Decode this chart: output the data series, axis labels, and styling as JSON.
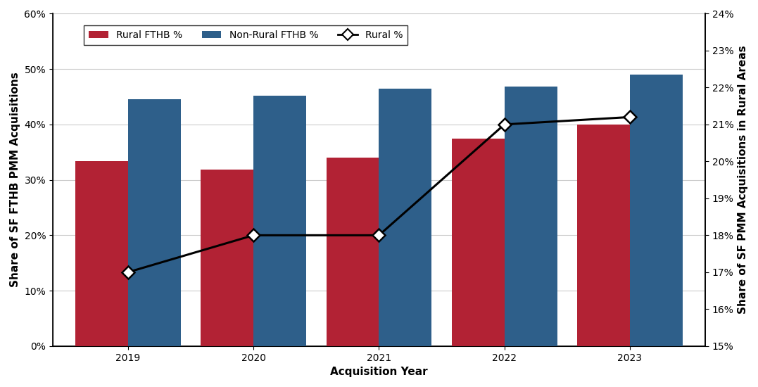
{
  "years": [
    2019,
    2020,
    2021,
    2022,
    2023
  ],
  "rural_fthb": [
    0.334,
    0.319,
    0.34,
    0.375,
    0.4
  ],
  "nonrural_fthb": [
    0.445,
    0.452,
    0.464,
    0.469,
    0.49
  ],
  "rural_pct": [
    0.17,
    0.18,
    0.18,
    0.21,
    0.212
  ],
  "bar_width": 0.42,
  "rural_color": "#b22234",
  "nonrural_color": "#2e5f8a",
  "line_color": "#000000",
  "left_ylim": [
    0.0,
    0.6
  ],
  "right_ylim": [
    0.15,
    0.24
  ],
  "left_yticks": [
    0.0,
    0.1,
    0.2,
    0.3,
    0.4,
    0.5,
    0.6
  ],
  "right_yticks": [
    0.15,
    0.16,
    0.17,
    0.18,
    0.19,
    0.2,
    0.21,
    0.22,
    0.23,
    0.24
  ],
  "xlabel": "Acquisition Year",
  "ylabel_left": "Share of SF FTHB PMM Acquisitions",
  "ylabel_right": "Share of SF PMM Acquisitions in Rural Areas",
  "legend_labels": [
    "Rural FTHB %",
    "Non-Rural FTHB %",
    "Rural %"
  ],
  "axis_fontsize": 11,
  "tick_fontsize": 10,
  "legend_fontsize": 10,
  "background_color": "#ffffff",
  "grid_color": "#cccccc"
}
